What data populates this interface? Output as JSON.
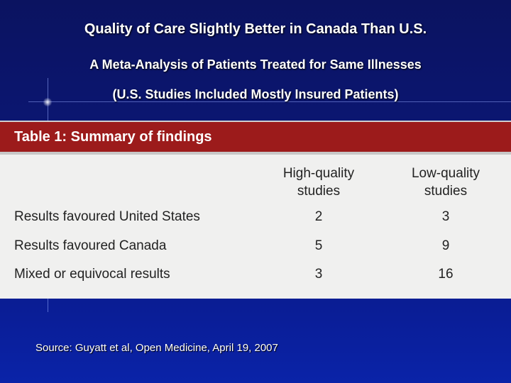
{
  "slide": {
    "title": "Quality of Care Slightly Better in Canada Than U.S.",
    "subtitle1": "A Meta-Analysis of Patients Treated for Same Illnesses",
    "subtitle2": "(U.S. Studies Included Mostly Insured Patients)"
  },
  "table": {
    "caption": "Table 1: Summary of findings",
    "columns": [
      "High-quality studies",
      "Low-quality studies"
    ],
    "column_lines": [
      [
        "High-quality",
        "studies"
      ],
      [
        "Low-quality",
        "studies"
      ]
    ],
    "rows": [
      {
        "label": "Results favoured United States",
        "high": "2",
        "low": "3"
      },
      {
        "label": "Results favoured Canada",
        "high": "5",
        "low": "9"
      },
      {
        "label": "Mixed or equivocal results",
        "high": "3",
        "low": "16"
      }
    ]
  },
  "source": "Source: Guyatt et al, Open Medicine, April 19, 2007",
  "colors": {
    "background": "#0b1778",
    "header_bar": "#9c1b1b",
    "table_bg": "#f0f0ef",
    "text_light": "#ffffff"
  }
}
